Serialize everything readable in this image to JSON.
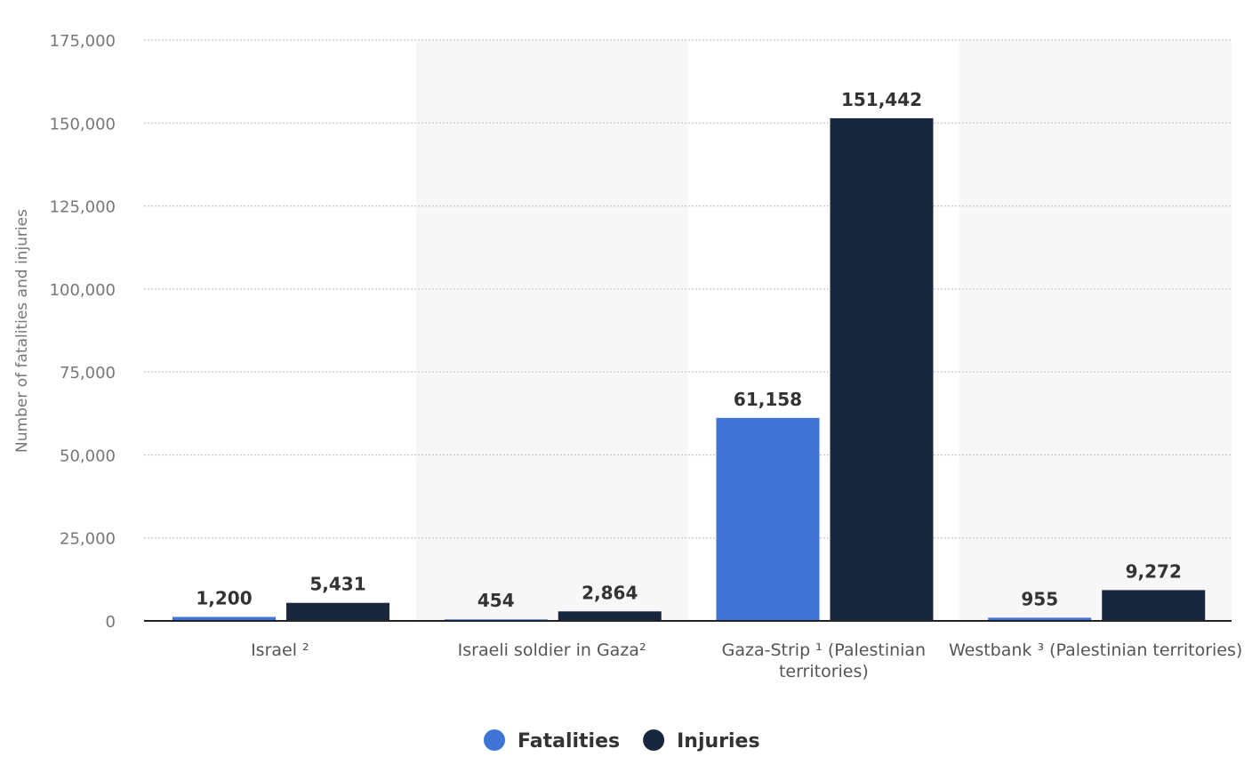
{
  "chart_data": {
    "type": "bar",
    "title": "",
    "xlabel": "",
    "ylabel": "Number of fatalities and injuries",
    "ylim": [
      0,
      175000
    ],
    "yticks": [
      0,
      25000,
      50000,
      75000,
      100000,
      125000,
      150000,
      175000
    ],
    "ytick_labels": [
      "0",
      "25,000",
      "50,000",
      "75,000",
      "100,000",
      "125,000",
      "150,000",
      "175,000"
    ],
    "grid": true,
    "legend_position": "bottom-center",
    "categories": [
      [
        "Israel ²"
      ],
      [
        "Israeli soldier in Gaza²"
      ],
      [
        "Gaza-Strip ¹ (Palestinian",
        "territories)"
      ],
      [
        "Westbank ³ (Palestinian territories)"
      ]
    ],
    "series": [
      {
        "name": "Fatalities",
        "color": "#3f74d6",
        "values": [
          1200,
          454,
          61158,
          955
        ],
        "labels": [
          "1,200",
          "454",
          "61,158",
          "955"
        ]
      },
      {
        "name": "Injuries",
        "color": "#18273d",
        "values": [
          5431,
          2864,
          151442,
          9272
        ],
        "labels": [
          "5,431",
          "2,864",
          "151,442",
          "9,272"
        ]
      }
    ]
  }
}
